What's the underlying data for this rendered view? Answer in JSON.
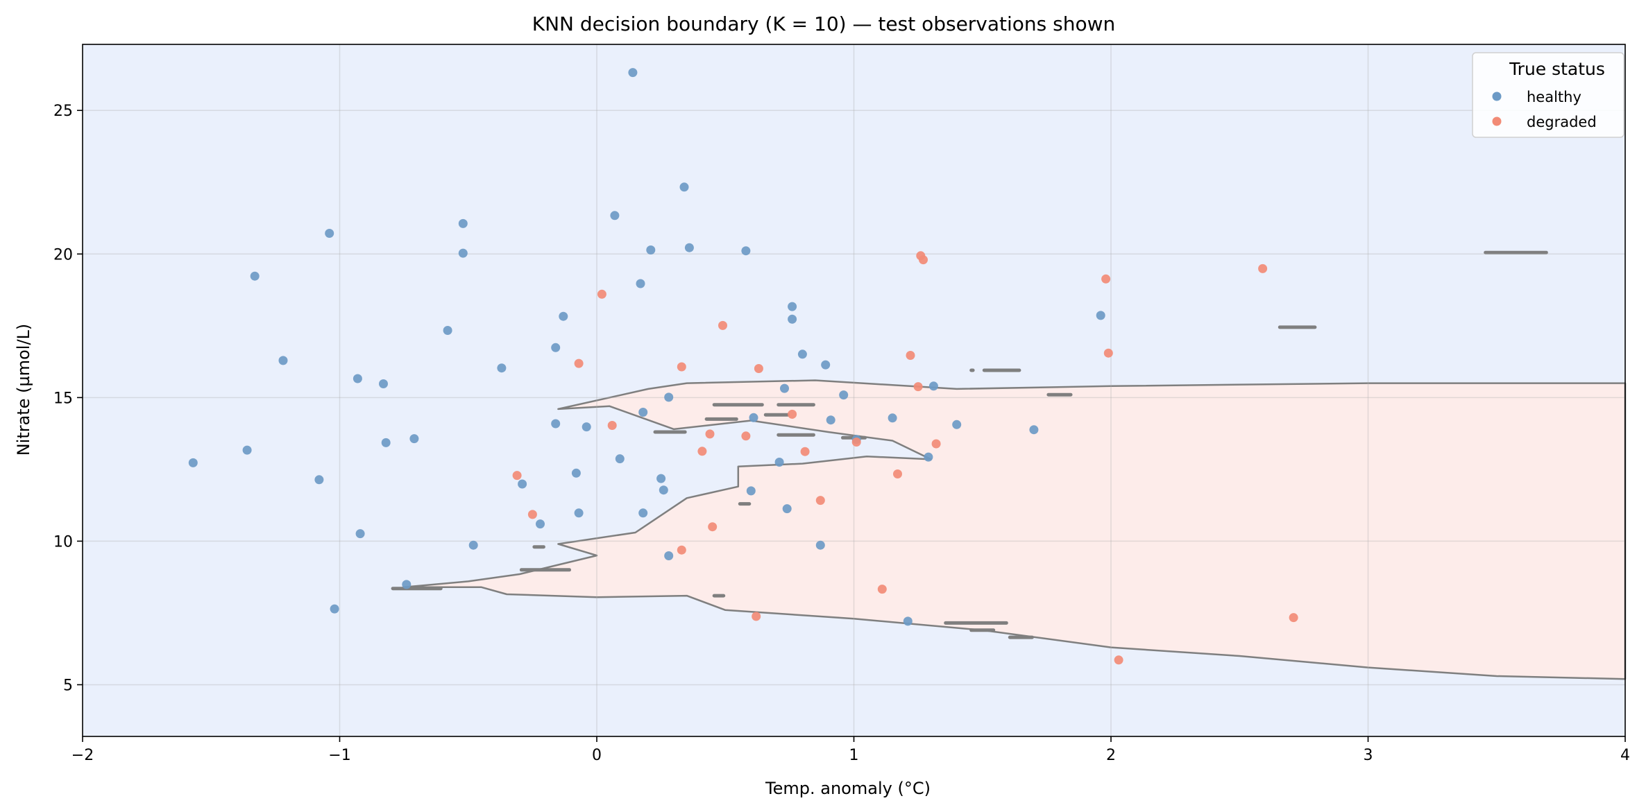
{
  "chart_data": {
    "type": "scatter",
    "title": "KNN decision boundary (K = 10) — test observations shown",
    "xlabel": "Temp. anomaly (°C)",
    "ylabel": "Nitrate (µmol/L)",
    "xlim": [
      -2,
      4
    ],
    "ylim": [
      3.2,
      27.3
    ],
    "xticks": [
      -2,
      -1,
      0,
      1,
      2,
      3,
      4
    ],
    "xtick_labels": [
      "−2",
      "−1",
      "0",
      "1",
      "2",
      "3",
      "4"
    ],
    "yticks": [
      5,
      10,
      15,
      20,
      25
    ],
    "ytick_labels": [
      "5",
      "10",
      "15",
      "20",
      "25"
    ],
    "grid": true,
    "legend": {
      "title": "True status",
      "position": "top-right",
      "entries": [
        "healthy",
        "degraded"
      ]
    },
    "colors": {
      "healthy": "#6c9ac6",
      "degraded": "#f28b76",
      "region_healthy": "#eaf0fc",
      "region_degraded": "#fdecea",
      "boundary": "#7f7f7f"
    },
    "decision_region_degraded": [
      [
        -0.75,
        8.4
      ],
      [
        -0.5,
        8.6
      ],
      [
        -0.3,
        8.85
      ],
      [
        0.0,
        9.5
      ],
      [
        -0.15,
        9.9
      ],
      [
        0.15,
        10.3
      ],
      [
        0.35,
        11.5
      ],
      [
        0.55,
        11.9
      ],
      [
        0.55,
        12.6
      ],
      [
        0.8,
        12.7
      ],
      [
        1.05,
        12.95
      ],
      [
        1.3,
        12.85
      ],
      [
        1.15,
        13.5
      ],
      [
        0.9,
        13.8
      ],
      [
        0.6,
        14.2
      ],
      [
        0.3,
        13.9
      ],
      [
        0.05,
        14.7
      ],
      [
        -0.15,
        14.6
      ],
      [
        0.2,
        15.3
      ],
      [
        0.35,
        15.5
      ],
      [
        0.85,
        15.6
      ],
      [
        1.4,
        15.3
      ],
      [
        2.0,
        15.4
      ],
      [
        3.0,
        15.5
      ],
      [
        4.0,
        15.5
      ],
      [
        4.0,
        5.2
      ],
      [
        3.5,
        5.3
      ],
      [
        3.0,
        5.6
      ],
      [
        2.5,
        6.0
      ],
      [
        2.0,
        6.3
      ],
      [
        1.5,
        6.9
      ],
      [
        1.0,
        7.3
      ],
      [
        0.5,
        7.6
      ],
      [
        0.35,
        8.1
      ],
      [
        0.0,
        8.05
      ],
      [
        -0.35,
        8.15
      ],
      [
        -0.45,
        8.4
      ]
    ],
    "boundary_islands": [
      {
        "x": [
          0.42,
          0.55
        ],
        "y": 14.25
      },
      {
        "x": [
          0.45,
          0.65
        ],
        "y": 14.75
      },
      {
        "x": [
          0.7,
          0.85
        ],
        "y": 14.75
      },
      {
        "x": [
          0.65,
          0.75
        ],
        "y": 14.4
      },
      {
        "x": [
          0.7,
          0.85
        ],
        "y": 13.7
      },
      {
        "x": [
          0.95,
          1.05
        ],
        "y": 13.6
      },
      {
        "x": [
          0.22,
          0.35
        ],
        "y": 13.8
      },
      {
        "x": [
          -0.3,
          -0.1
        ],
        "y": 9.0
      },
      {
        "x": [
          -0.25,
          -0.2
        ],
        "y": 9.8
      },
      {
        "x": [
          -0.8,
          -0.6
        ],
        "y": 8.35
      },
      {
        "x": [
          0.45,
          0.5
        ],
        "y": 8.1
      },
      {
        "x": [
          0.55,
          0.6
        ],
        "y": 11.3
      },
      {
        "x": [
          1.35,
          1.6
        ],
        "y": 7.15
      },
      {
        "x": [
          1.45,
          1.55
        ],
        "y": 6.9
      },
      {
        "x": [
          1.6,
          1.7
        ],
        "y": 6.65
      },
      {
        "x": [
          1.5,
          1.65
        ],
        "y": 15.95
      },
      {
        "x": [
          1.45,
          1.47
        ],
        "y": 15.95
      },
      {
        "x": [
          1.75,
          1.85
        ],
        "y": 15.1
      },
      {
        "x": [
          2.65,
          2.8
        ],
        "y": 17.45
      },
      {
        "x": [
          3.45,
          3.7
        ],
        "y": 20.05
      }
    ],
    "series": [
      {
        "name": "healthy",
        "points": [
          [
            -1.57,
            12.73
          ],
          [
            -1.36,
            13.17
          ],
          [
            -1.33,
            19.23
          ],
          [
            -1.22,
            16.29
          ],
          [
            -1.08,
            12.14
          ],
          [
            -1.04,
            20.72
          ],
          [
            -1.02,
            7.64
          ],
          [
            -0.93,
            15.66
          ],
          [
            -0.92,
            10.26
          ],
          [
            -0.83,
            15.48
          ],
          [
            -0.82,
            13.43
          ],
          [
            -0.74,
            8.49
          ],
          [
            -0.71,
            13.57
          ],
          [
            -0.58,
            17.34
          ],
          [
            -0.52,
            21.06
          ],
          [
            -0.52,
            20.03
          ],
          [
            -0.48,
            9.86
          ],
          [
            -0.37,
            16.03
          ],
          [
            -0.29,
            11.99
          ],
          [
            -0.22,
            10.6
          ],
          [
            -0.16,
            16.74
          ],
          [
            -0.16,
            14.09
          ],
          [
            -0.13,
            17.83
          ],
          [
            -0.08,
            12.37
          ],
          [
            -0.07,
            10.98
          ],
          [
            -0.04,
            13.98
          ],
          [
            0.07,
            21.34
          ],
          [
            0.09,
            12.87
          ],
          [
            0.14,
            26.32
          ],
          [
            0.17,
            18.97
          ],
          [
            0.18,
            14.49
          ],
          [
            0.18,
            10.98
          ],
          [
            0.21,
            20.14
          ],
          [
            0.25,
            12.18
          ],
          [
            0.26,
            11.78
          ],
          [
            0.28,
            9.49
          ],
          [
            0.28,
            15.01
          ],
          [
            0.34,
            22.33
          ],
          [
            0.36,
            20.22
          ],
          [
            0.58,
            20.11
          ],
          [
            0.6,
            11.75
          ],
          [
            0.61,
            14.3
          ],
          [
            0.71,
            12.75
          ],
          [
            0.73,
            15.32
          ],
          [
            0.74,
            11.13
          ],
          [
            0.76,
            18.17
          ],
          [
            0.76,
            17.73
          ],
          [
            0.8,
            16.51
          ],
          [
            0.87,
            9.86
          ],
          [
            0.89,
            16.14
          ],
          [
            0.91,
            14.22
          ],
          [
            0.96,
            15.09
          ],
          [
            1.01,
            13.54
          ],
          [
            1.15,
            14.29
          ],
          [
            1.21,
            7.21
          ],
          [
            1.29,
            12.93
          ],
          [
            1.31,
            15.4
          ],
          [
            1.4,
            14.06
          ],
          [
            1.7,
            13.88
          ],
          [
            1.96,
            17.86
          ]
        ]
      },
      {
        "name": "degraded",
        "points": [
          [
            -0.31,
            12.29
          ],
          [
            -0.25,
            10.93
          ],
          [
            -0.07,
            16.19
          ],
          [
            0.02,
            18.6
          ],
          [
            0.06,
            14.03
          ],
          [
            0.33,
            16.07
          ],
          [
            0.33,
            9.69
          ],
          [
            0.41,
            13.13
          ],
          [
            0.44,
            13.73
          ],
          [
            0.45,
            10.5
          ],
          [
            0.49,
            17.51
          ],
          [
            0.58,
            13.66
          ],
          [
            0.62,
            7.38
          ],
          [
            0.63,
            16.01
          ],
          [
            0.76,
            14.42
          ],
          [
            0.81,
            13.12
          ],
          [
            0.87,
            11.42
          ],
          [
            1.01,
            13.45
          ],
          [
            1.11,
            8.33
          ],
          [
            1.17,
            12.34
          ],
          [
            1.22,
            16.47
          ],
          [
            1.25,
            15.38
          ],
          [
            1.26,
            19.94
          ],
          [
            1.27,
            19.8
          ],
          [
            1.32,
            13.39
          ],
          [
            1.98,
            19.13
          ],
          [
            1.99,
            16.55
          ],
          [
            2.03,
            5.86
          ],
          [
            2.59,
            19.49
          ],
          [
            2.71,
            7.34
          ]
        ]
      }
    ]
  }
}
